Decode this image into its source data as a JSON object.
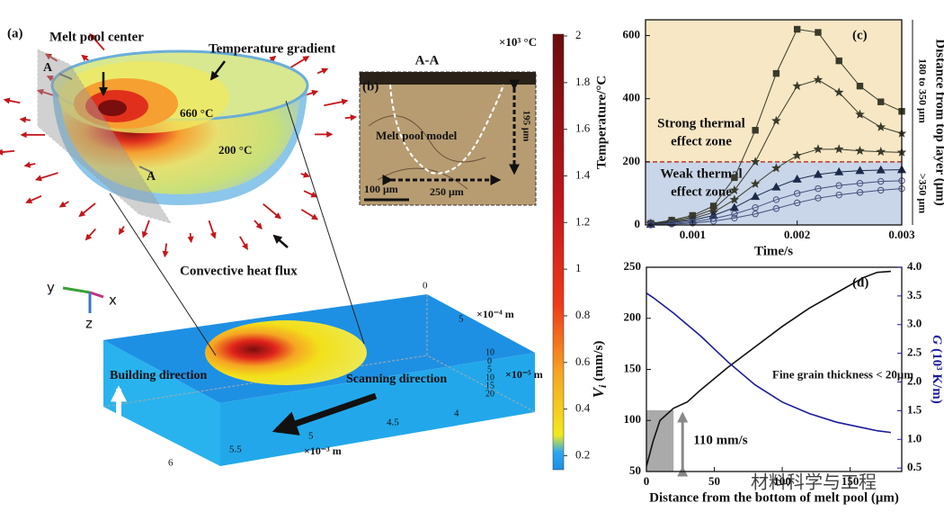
{
  "figure": {
    "panel_a": {
      "label": "(a)",
      "melt_pool_center": "Melt pool center",
      "temperature_gradient": "Temperature gradient",
      "iso_660": "660 °C",
      "iso_200": "200 °C",
      "section_top": "A",
      "section_bottom": "A",
      "convective": "Convective heat flux",
      "building": "Building direction",
      "scanning": "Scanning direction",
      "axis_y": "y",
      "axis_x": "x",
      "axis_z": "z",
      "axis_x4_unit": "×10⁻⁴ m",
      "axis_x4_ticks": [
        "0",
        "5"
      ],
      "axis_x5_unit": "×10⁻⁵ m",
      "axis_x5_ticks": [
        "10",
        "0",
        "5",
        "10",
        "15",
        "20"
      ],
      "axis_x3_unit": "×10⁻³ m",
      "axis_x3_ticks": [
        "4",
        "4.5",
        "5",
        "5.5",
        "6"
      ]
    },
    "panel_b": {
      "title": "A-A",
      "label": "(b)",
      "model": "Melt pool model",
      "depth": "195 μm",
      "scale": "100 μm",
      "width": "250 μm"
    },
    "colorbar": {
      "unit": "×10³ °C",
      "lim": [
        0.14,
        2
      ],
      "ticks": [
        0.2,
        0.4,
        0.6,
        0.8,
        1,
        1.2,
        1.4,
        1.6,
        1.8,
        2
      ]
    },
    "watermark": "材料科学与工程"
  },
  "chart_data": [
    {
      "type": "line",
      "label": "(c)",
      "xlabel": "Time/s",
      "ylabel": "Temperature/°C",
      "y2label": "Distance from top layer (μm)",
      "x": [
        0.0006,
        0.0008,
        0.001,
        0.0012,
        0.0014,
        0.0016,
        0.0018,
        0.002,
        0.0022,
        0.0024,
        0.0026,
        0.0028,
        0.003
      ],
      "series": [
        {
          "color": "#3a3a2a",
          "marker": "square",
          "values": [
            5,
            15,
            30,
            60,
            150,
            300,
            480,
            620,
            610,
            520,
            440,
            390,
            360
          ]
        },
        {
          "color": "#3a3a2a",
          "marker": "star",
          "values": [
            5,
            12,
            25,
            50,
            110,
            200,
            330,
            440,
            460,
            420,
            350,
            310,
            290
          ]
        },
        {
          "color": "#3a3a2a",
          "marker": "star",
          "values": [
            3,
            10,
            20,
            40,
            80,
            130,
            180,
            220,
            240,
            240,
            235,
            232,
            230
          ]
        },
        {
          "color": "#1c2a4a",
          "marker": "triangle",
          "values": [
            2,
            8,
            15,
            30,
            55,
            90,
            120,
            145,
            160,
            168,
            172,
            174,
            175
          ]
        },
        {
          "color": "#44507a",
          "marker": "circle",
          "values": [
            1,
            5,
            10,
            20,
            35,
            55,
            80,
            100,
            115,
            125,
            132,
            138,
            140
          ]
        },
        {
          "color": "#44507a",
          "marker": "circle",
          "values": [
            0,
            3,
            6,
            12,
            22,
            35,
            52,
            70,
            85,
            95,
            103,
            110,
            115
          ]
        }
      ],
      "xlim": [
        0.00055,
        0.003
      ],
      "xticks": [
        0.001,
        0.002,
        0.003
      ],
      "ylim": [
        0,
        650
      ],
      "yticks": [
        0,
        200,
        400,
        600
      ],
      "threshold": 200,
      "threshold_color": "#c0392b",
      "zones": [
        {
          "label_lines": [
            "Strong thermal",
            "effect zone"
          ],
          "color": "#f7e7c4"
        },
        {
          "label_lines": [
            "Weak thermal",
            "effect zone"
          ],
          "color": "#c9d5e9"
        }
      ],
      "range_labels": [
        "180 to 350 μm",
        ">350 μm"
      ]
    },
    {
      "type": "line",
      "label": "(d)",
      "xlabel": "Distance from the bottom of melt pool (μm)",
      "ylabel_symbol": "V",
      "ylabel_sub": "i",
      "ylabel_unit": "(mm/s)",
      "y2label_symbol": "G",
      "y2label_unit": "(10³ K/m)",
      "x": [
        0,
        5,
        10,
        20,
        30,
        40,
        60,
        80,
        100,
        120,
        140,
        160,
        170,
        180
      ],
      "series": [
        {
          "color": "#111111",
          "values": [
            55,
            80,
            100,
            112,
            118,
            130,
            152,
            172,
            192,
            210,
            225,
            240,
            245,
            246
          ]
        },
        {
          "color": "#1c1c9a",
          "axis": "y2",
          "values": [
            3.55,
            3.47,
            3.38,
            3.2,
            3.0,
            2.8,
            2.35,
            1.95,
            1.65,
            1.45,
            1.3,
            1.2,
            1.15,
            1.12
          ]
        }
      ],
      "xlim": [
        0,
        188
      ],
      "xticks": [
        0,
        50,
        100,
        150
      ],
      "ylim": [
        50,
        250
      ],
      "yticks": [
        50,
        100,
        150,
        200,
        250
      ],
      "y2lim": [
        0.44,
        4
      ],
      "y2ticks": [
        0.5,
        {
          "value": 1,
          "label": "1.0"
        },
        1.5,
        {
          "value": 2,
          "label": "2.0"
        },
        2.5,
        {
          "value": 3,
          "label": "3.0"
        },
        3.5,
        {
          "value": 4,
          "label": "4.0"
        }
      ],
      "annotation": "Fine grain thickness < 20μm",
      "highlight_x": 20,
      "highlight_value": 110,
      "highlight_label": "110 mm/s"
    }
  ]
}
